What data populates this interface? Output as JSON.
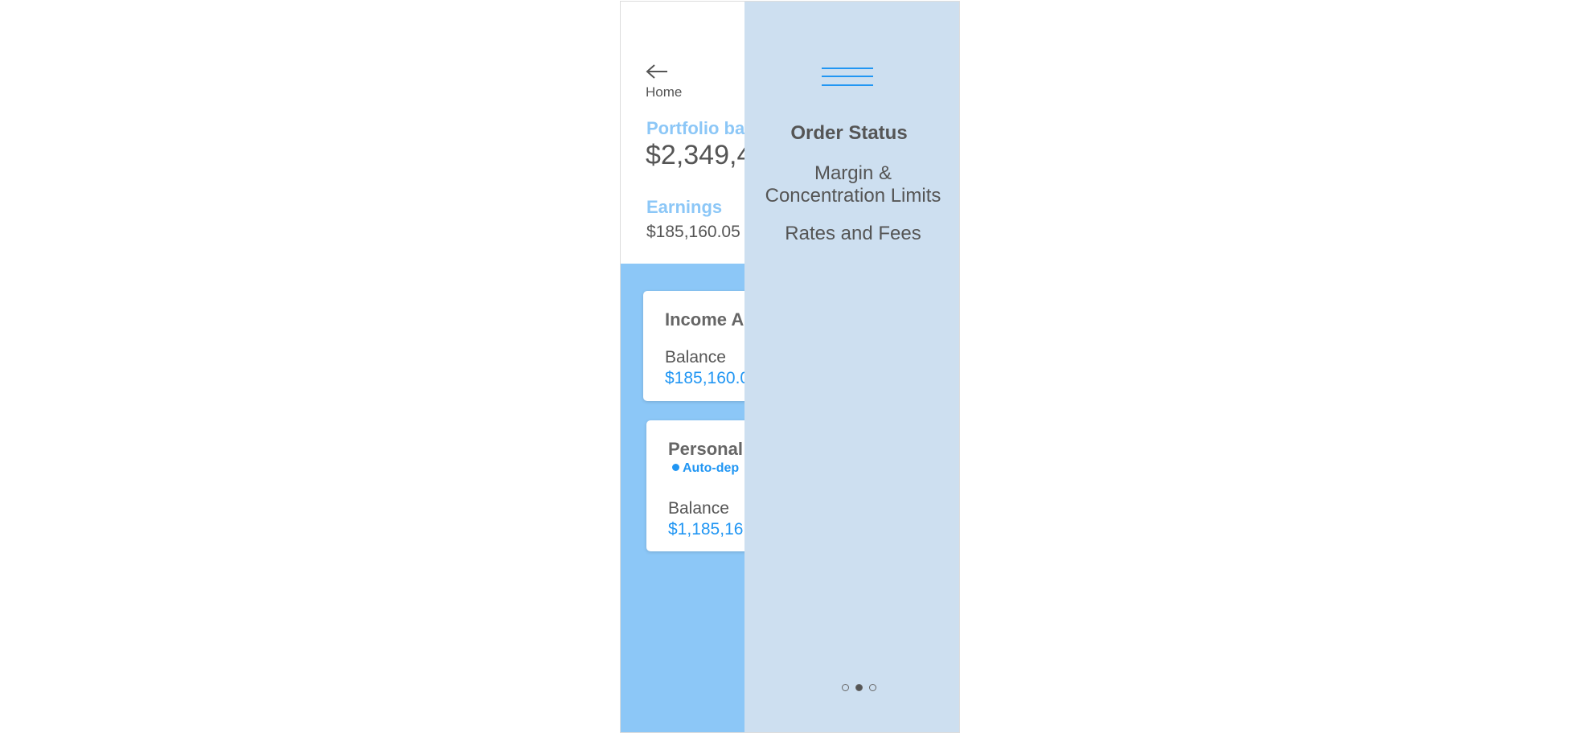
{
  "back": {
    "label": "Home"
  },
  "summary": {
    "portfolio_label": "Portfolio ba",
    "portfolio_value": "$2,349,4",
    "earnings_label": "Earnings",
    "earnings_value": "$185,160.05"
  },
  "cards": [
    {
      "title": "Income A",
      "balance_label": "Balance",
      "balance_value": "$185,160.0"
    },
    {
      "title": "Personal",
      "tag": "Auto-dep",
      "balance_label": "Balance",
      "balance_value": "$1,185,16"
    }
  ],
  "menu": {
    "items": [
      "Order Status",
      "Margin &",
      "Concentration Limits",
      "Rates and Fees"
    ]
  }
}
